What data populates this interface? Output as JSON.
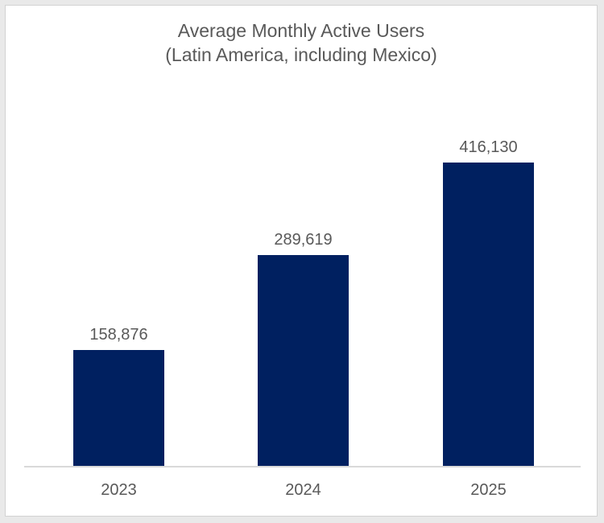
{
  "frame": {
    "outer_background": "#e9e9e9",
    "border_color": "#d2d2d2",
    "canvas_background": "#ffffff"
  },
  "chart_data": {
    "type": "bar",
    "title": "Average Monthly Active Users",
    "subtitle": "(Latin America, including Mexico)",
    "categories": [
      "2023",
      "2024",
      "2025"
    ],
    "values": [
      158876,
      289619,
      416130
    ],
    "value_labels": [
      "158,876",
      "289,619",
      "416,130"
    ],
    "xlabel": "",
    "ylabel": "",
    "ylim": [
      0,
      416130
    ],
    "grid": "off",
    "legend": "none",
    "y_axis_visible": false,
    "colors": {
      "bar": "#002060",
      "title_text": "#595959",
      "label_text": "#595959",
      "axis_line": "#d9d9d9"
    }
  }
}
